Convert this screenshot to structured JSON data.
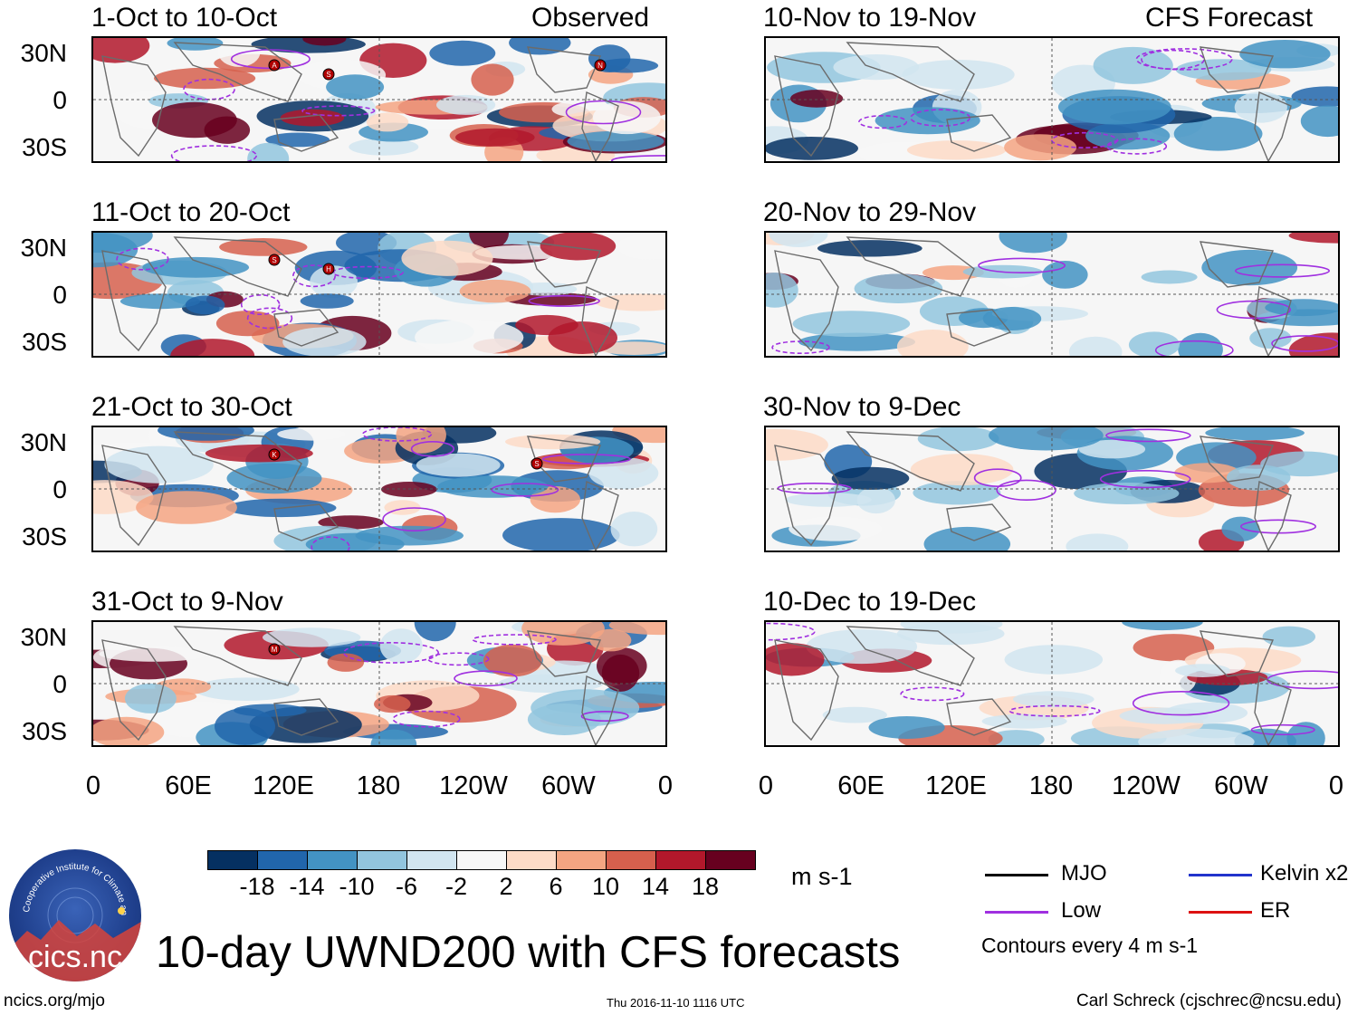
{
  "chart_data": {
    "type": "heatmap",
    "title": "10-day UWND200 with CFS forecasts",
    "units": "m s-1",
    "x_ticks": [
      "0",
      "60E",
      "120E",
      "180",
      "120W",
      "60W",
      "0"
    ],
    "y_ticks": [
      "30N",
      "0",
      "30S"
    ],
    "column_headers": [
      "Observed",
      "CFS Forecast"
    ],
    "panels": [
      {
        "period": "1-Oct to 10-Oct",
        "source": "Observed",
        "storms": [
          "A",
          "S",
          "N"
        ]
      },
      {
        "period": "11-Oct to 20-Oct",
        "source": "Observed",
        "storms": [
          "S",
          "H"
        ]
      },
      {
        "period": "21-Oct to 30-Oct",
        "source": "Observed",
        "storms": [
          "K",
          "S"
        ]
      },
      {
        "period": "31-Oct to 9-Nov",
        "source": "Observed",
        "storms": [
          "M"
        ]
      },
      {
        "period": "10-Nov to 19-Nov",
        "source": "CFS Forecast",
        "storms": []
      },
      {
        "period": "20-Nov to 29-Nov",
        "source": "CFS Forecast",
        "storms": []
      },
      {
        "period": "30-Nov to 9-Dec",
        "source": "CFS Forecast",
        "storms": []
      },
      {
        "period": "10-Dec to 19-Dec",
        "source": "CFS Forecast",
        "storms": []
      }
    ],
    "colorbar": {
      "labels": [
        "-18",
        "-14",
        "-10",
        "-6",
        "-2",
        "2",
        "6",
        "10",
        "14",
        "18"
      ],
      "colors": [
        "#053061",
        "#2166ac",
        "#4393c3",
        "#92c5de",
        "#d1e5f0",
        "#f7f7f7",
        "#fddbc7",
        "#f4a582",
        "#d6604d",
        "#b2182b",
        "#67001f"
      ]
    },
    "legend": [
      {
        "label": "MJO",
        "color": "#000000"
      },
      {
        "label": "Kelvin x2",
        "color": "#2233cc"
      },
      {
        "label": "Low",
        "color": "#a030e0"
      },
      {
        "label": "ER",
        "color": "#dd1111"
      }
    ],
    "contour_note": "Contours every 4 m s-1"
  },
  "logo": {
    "text": "cics.nc",
    "ring_text": "Cooperative Institute for Climate and Satellites"
  },
  "footer": {
    "url": "ncics.org/mjo",
    "timestamp": "Thu 2016-11-10 1116 UTC",
    "author": "Carl Schreck (cjschrec@ncsu.edu)"
  }
}
